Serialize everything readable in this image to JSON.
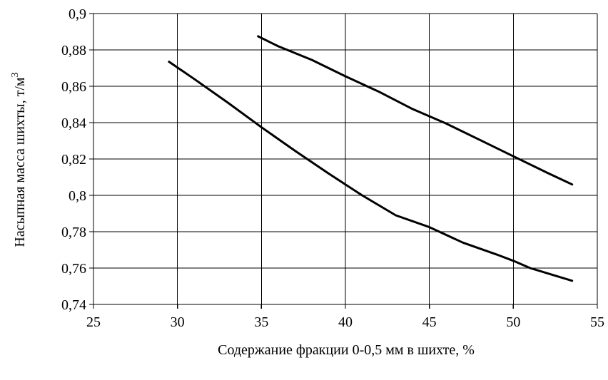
{
  "chart_data": {
    "type": "line",
    "title": "",
    "xlabel": "Содержание фракции 0-0,5 мм в шихте, %",
    "ylabel": "Насыпная масса шихты, т/м",
    "ylabel_superscript": "3",
    "xlim": [
      25,
      55
    ],
    "ylim": [
      0.74,
      0.9
    ],
    "x_ticks": [
      25,
      30,
      35,
      40,
      45,
      50,
      55
    ],
    "y_ticks": [
      0.74,
      0.76,
      0.78,
      0.8,
      0.82,
      0.84,
      0.86,
      0.88,
      0.9
    ],
    "x_tick_labels": [
      "25",
      "30",
      "35",
      "40",
      "45",
      "50",
      "55"
    ],
    "y_tick_labels": [
      "0,74",
      "0,76",
      "0,78",
      "0,8",
      "0,82",
      "0,84",
      "0,86",
      "0,88",
      "0,9"
    ],
    "grid": true,
    "legend": "none",
    "series": [
      {
        "x": [
          29.5,
          31,
          33,
          35,
          37,
          39,
          40,
          41,
          43,
          45,
          47,
          49,
          50,
          51,
          53.5
        ],
        "y": [
          0.8735,
          0.864,
          0.851,
          0.8375,
          0.8245,
          0.812,
          0.806,
          0.8,
          0.789,
          0.7825,
          0.774,
          0.7675,
          0.764,
          0.76,
          0.753
        ]
      },
      {
        "x": [
          34.8,
          36,
          38,
          40,
          42,
          44,
          46,
          48,
          50,
          52,
          53.5
        ],
        "y": [
          0.8875,
          0.882,
          0.8745,
          0.8655,
          0.857,
          0.8475,
          0.8395,
          0.8305,
          0.8215,
          0.8125,
          0.806
        ]
      }
    ]
  }
}
